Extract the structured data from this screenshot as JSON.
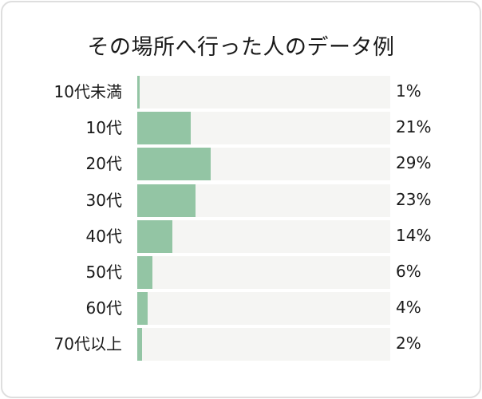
{
  "chart_data": {
    "type": "bar",
    "orientation": "horizontal",
    "title": "その場所へ行った人のデータ例",
    "categories": [
      "10代未満",
      "10代",
      "20代",
      "30代",
      "40代",
      "50代",
      "60代",
      "70代以上"
    ],
    "values": [
      1,
      21,
      29,
      23,
      14,
      6,
      4,
      2
    ],
    "value_labels": [
      "1%",
      "21%",
      "29%",
      "23%",
      "14%",
      "6%",
      "4%",
      "2%"
    ],
    "unit": "%",
    "xlim": [
      0,
      100
    ],
    "xlabel": "",
    "ylabel": "",
    "grid": false,
    "legend": null,
    "colors": {
      "bar": "#93c5a4",
      "track": "#f5f5f3",
      "border": "#dedede"
    }
  },
  "title": "その場所へ行った人のデータ例",
  "rows": [
    {
      "label": "10代未満",
      "value": 1,
      "value_label": "1%"
    },
    {
      "label": "10代",
      "value": 21,
      "value_label": "21%"
    },
    {
      "label": "20代",
      "value": 29,
      "value_label": "29%"
    },
    {
      "label": "30代",
      "value": 23,
      "value_label": "23%"
    },
    {
      "label": "40代",
      "value": 14,
      "value_label": "14%"
    },
    {
      "label": "50代",
      "value": 6,
      "value_label": "6%"
    },
    {
      "label": "60代",
      "value": 4,
      "value_label": "4%"
    },
    {
      "label": "70代以上",
      "value": 2,
      "value_label": "2%"
    }
  ]
}
